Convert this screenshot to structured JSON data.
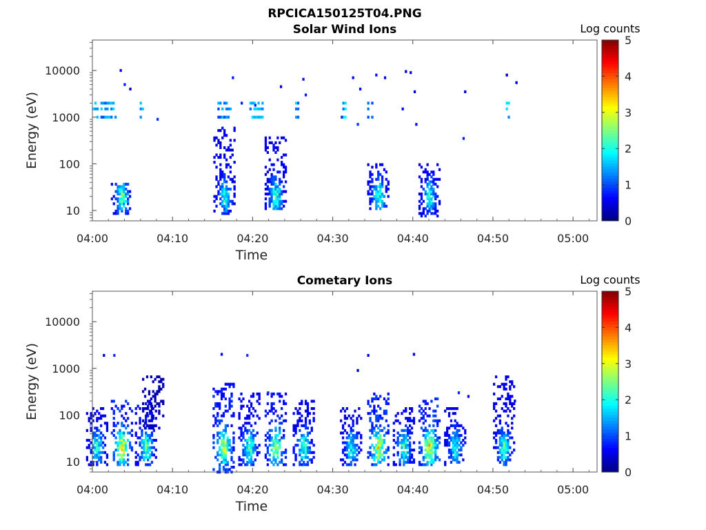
{
  "figure_title": "RPCICA150125T04.PNG",
  "chart_data": [
    {
      "type": "heatmap",
      "title": "Solar Wind Ions",
      "xlabel": "Time",
      "ylabel": "Energy (eV)",
      "x_ticks": [
        "04:00",
        "04:10",
        "04:20",
        "04:30",
        "04:40",
        "04:50",
        "05:00"
      ],
      "x_range_minutes": [
        0,
        63
      ],
      "y_ticks": [
        "10",
        "100",
        "1000",
        "10000"
      ],
      "y_scale": "log",
      "y_range": [
        6,
        45000
      ],
      "colorbar": {
        "label": "Log counts",
        "ticks": [
          "0",
          "1",
          "2",
          "3",
          "4",
          "5"
        ],
        "range": [
          0,
          5
        ],
        "colormap": "jet"
      },
      "bursts": [
        {
          "t": 3.6,
          "e_min": 8,
          "e_max": 40,
          "peak": 2.3
        },
        {
          "t": 16.4,
          "e_min": 8,
          "e_max": 600,
          "peak": 2.0
        },
        {
          "t": 22.8,
          "e_min": 10,
          "e_max": 400,
          "peak": 2.2
        },
        {
          "t": 35.6,
          "e_min": 10,
          "e_max": 100,
          "peak": 2.2
        },
        {
          "t": 42.0,
          "e_min": 7,
          "e_max": 100,
          "peak": 2.0
        }
      ],
      "band_1000_2000": [
        {
          "t0": 0.0,
          "t1": 2.8,
          "level": 1.6
        },
        {
          "t0": 5.9,
          "t1": 6.3,
          "level": 1.8
        },
        {
          "t0": 15.6,
          "t1": 17.3,
          "level": 1.5
        },
        {
          "t0": 19.6,
          "t1": 21.2,
          "level": 1.7
        },
        {
          "t0": 25.3,
          "t1": 25.7,
          "level": 1.6
        },
        {
          "t0": 31.2,
          "t1": 31.6,
          "level": 1.8
        },
        {
          "t0": 34.3,
          "t1": 35.0,
          "level": 1.5
        },
        {
          "t0": 51.6,
          "t1": 51.9,
          "level": 1.7
        }
      ],
      "scatter_hits": [
        {
          "t": 3.4,
          "e": 10000
        },
        {
          "t": 3.9,
          "e": 5000
        },
        {
          "t": 4.6,
          "e": 4000
        },
        {
          "t": 8.0,
          "e": 900
        },
        {
          "t": 17.4,
          "e": 7000
        },
        {
          "t": 18.5,
          "e": 2000
        },
        {
          "t": 20.2,
          "e": 1800
        },
        {
          "t": 23.4,
          "e": 4500
        },
        {
          "t": 26.2,
          "e": 6500
        },
        {
          "t": 26.5,
          "e": 3000
        },
        {
          "t": 31.0,
          "e": 1000
        },
        {
          "t": 32.4,
          "e": 7000
        },
        {
          "t": 33.0,
          "e": 700
        },
        {
          "t": 33.3,
          "e": 4000
        },
        {
          "t": 35.3,
          "e": 8000
        },
        {
          "t": 36.4,
          "e": 7000
        },
        {
          "t": 38.6,
          "e": 1500
        },
        {
          "t": 39.0,
          "e": 9500
        },
        {
          "t": 39.6,
          "e": 9000
        },
        {
          "t": 40.1,
          "e": 3500
        },
        {
          "t": 40.3,
          "e": 700
        },
        {
          "t": 46.4,
          "e": 3500
        },
        {
          "t": 46.2,
          "e": 350
        },
        {
          "t": 51.6,
          "e": 8000
        },
        {
          "t": 52.8,
          "e": 5500
        }
      ]
    },
    {
      "type": "heatmap",
      "title": "Cometary Ions",
      "xlabel": "Time",
      "ylabel": "Energy (eV)",
      "x_ticks": [
        "04:00",
        "04:10",
        "04:20",
        "04:30",
        "04:40",
        "04:50",
        "05:00"
      ],
      "x_range_minutes": [
        0,
        63
      ],
      "y_ticks": [
        "10",
        "100",
        "1000",
        "10000"
      ],
      "y_scale": "log",
      "y_range": [
        6,
        45000
      ],
      "colorbar": {
        "label": "Log counts",
        "ticks": [
          "0",
          "1",
          "2",
          "3",
          "4",
          "5"
        ],
        "range": [
          0,
          5
        ],
        "colormap": "jet"
      },
      "bursts": [
        {
          "t": 0.5,
          "e_min": 8,
          "e_max": 150,
          "peak": 2.0
        },
        {
          "t": 3.6,
          "e_min": 8,
          "e_max": 200,
          "peak": 3.1
        },
        {
          "t": 6.6,
          "e_min": 8,
          "e_max": 200,
          "peak": 2.3
        },
        {
          "t": 7.5,
          "e_min": 50,
          "e_max": 700,
          "peak": 1.0
        },
        {
          "t": 16.3,
          "e_min": 6,
          "e_max": 500,
          "peak": 3.0
        },
        {
          "t": 19.5,
          "e_min": 8,
          "e_max": 300,
          "peak": 2.3
        },
        {
          "t": 22.8,
          "e_min": 8,
          "e_max": 300,
          "peak": 2.8
        },
        {
          "t": 26.3,
          "e_min": 8,
          "e_max": 200,
          "peak": 2.2
        },
        {
          "t": 32.2,
          "e_min": 8,
          "e_max": 150,
          "peak": 2.0
        },
        {
          "t": 35.6,
          "e_min": 8,
          "e_max": 300,
          "peak": 3.2
        },
        {
          "t": 38.8,
          "e_min": 8,
          "e_max": 150,
          "peak": 2.2
        },
        {
          "t": 42.0,
          "e_min": 8,
          "e_max": 250,
          "peak": 3.3
        },
        {
          "t": 45.2,
          "e_min": 8,
          "e_max": 150,
          "peak": 2.0
        },
        {
          "t": 51.3,
          "e_min": 8,
          "e_max": 700,
          "peak": 2.2
        }
      ],
      "band_1000_2000": [],
      "scatter_hits": [
        {
          "t": 1.3,
          "e": 1900
        },
        {
          "t": 2.6,
          "e": 1900
        },
        {
          "t": 16.0,
          "e": 2000
        },
        {
          "t": 19.2,
          "e": 1900
        },
        {
          "t": 21.8,
          "e": 300
        },
        {
          "t": 33.0,
          "e": 900
        },
        {
          "t": 34.3,
          "e": 1900
        },
        {
          "t": 40.0,
          "e": 2000
        },
        {
          "t": 45.6,
          "e": 300
        },
        {
          "t": 46.8,
          "e": 250
        },
        {
          "t": 52.6,
          "e": 200
        }
      ]
    }
  ]
}
